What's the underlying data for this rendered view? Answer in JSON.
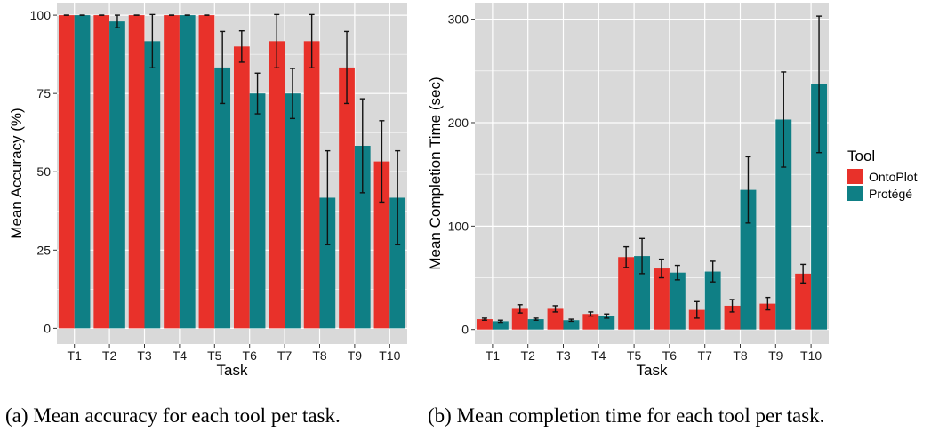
{
  "legend": {
    "title": "Tool",
    "items": [
      {
        "label": "OntoPlot",
        "color": "#e8312a"
      },
      {
        "label": "Protégé",
        "color": "#0f7f85"
      }
    ]
  },
  "captions": {
    "a": "(a) Mean accuracy for each tool per task.",
    "b": "(b) Mean completion time for each tool per task."
  },
  "chart_data": [
    {
      "type": "bar",
      "title": "",
      "xlabel": "Task",
      "ylabel": "Mean Accuracy (%)",
      "categories": [
        "T1",
        "T2",
        "T3",
        "T4",
        "T5",
        "T6",
        "T7",
        "T8",
        "T9",
        "T10"
      ],
      "ylim": [
        -5,
        104
      ],
      "yticks": [
        0,
        25,
        50,
        75,
        100
      ],
      "grid": true,
      "series": [
        {
          "name": "OntoPlot",
          "color": "#e8312a",
          "values": [
            100,
            100,
            100,
            100,
            100,
            90,
            91.7,
            91.7,
            83.3,
            53.3
          ],
          "error": [
            0,
            0,
            0,
            0,
            0,
            5,
            8.5,
            8.5,
            11.5,
            13
          ]
        },
        {
          "name": "Protégé",
          "color": "#0f7f85",
          "values": [
            100,
            98,
            91.7,
            100,
            83.3,
            75,
            75,
            41.7,
            58.3,
            41.7
          ],
          "error": [
            0,
            2,
            8.5,
            0,
            11.5,
            6.5,
            8,
            15,
            15,
            15
          ]
        }
      ]
    },
    {
      "type": "bar",
      "title": "",
      "xlabel": "Task",
      "ylabel": "Mean Completion Time (sec)",
      "categories": [
        "T1",
        "T2",
        "T3",
        "T4",
        "T5",
        "T6",
        "T7",
        "T8",
        "T9",
        "T10"
      ],
      "ylim": [
        -14,
        316
      ],
      "yticks": [
        0,
        100,
        200,
        300
      ],
      "grid": true,
      "legend_position": "right",
      "series": [
        {
          "name": "OntoPlot",
          "color": "#e8312a",
          "values": [
            10,
            20,
            20,
            15,
            70,
            59,
            19,
            23,
            25,
            54
          ],
          "error": [
            1,
            4,
            3,
            2,
            10,
            9,
            8,
            6,
            6,
            9
          ]
        },
        {
          "name": "Protégé",
          "color": "#0f7f85",
          "values": [
            8,
            10,
            9,
            13,
            71,
            55,
            56,
            135,
            203,
            237
          ],
          "error": [
            1,
            1,
            1,
            2,
            17,
            7,
            10,
            32,
            46,
            66
          ]
        }
      ]
    }
  ]
}
